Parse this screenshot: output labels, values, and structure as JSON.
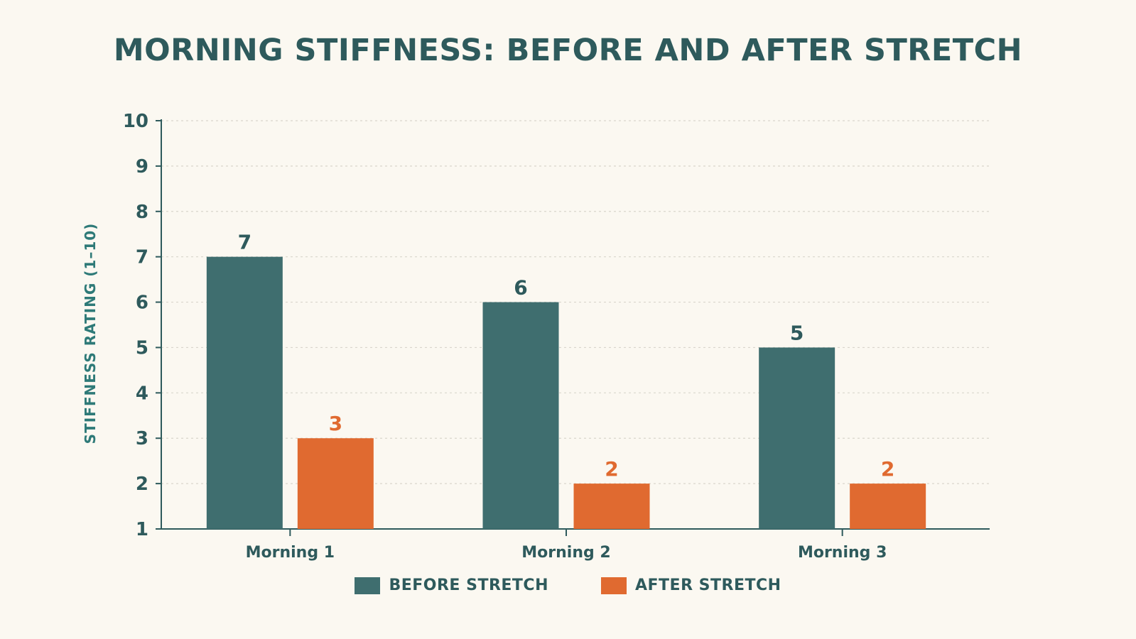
{
  "chart_data": {
    "type": "bar",
    "title": "MORNING STIFFNESS: BEFORE AND AFTER STRETCH",
    "xlabel": "",
    "ylabel": "STIFFNESS RATING (1–10)",
    "categories": [
      "Morning 1",
      "Morning 2",
      "Morning 3"
    ],
    "series": [
      {
        "name": "BEFORE STRETCH",
        "values": [
          7,
          6,
          5
        ],
        "color": "#3f6e6f",
        "label_color": "#2e5a5c"
      },
      {
        "name": "AFTER STRETCH",
        "values": [
          3,
          2,
          2
        ],
        "color": "#e06a30",
        "label_color": "#e06a30"
      }
    ],
    "ylim": [
      1,
      10
    ],
    "yticks": [
      1,
      2,
      3,
      4,
      5,
      6,
      7,
      8,
      9,
      10
    ],
    "grid": true,
    "legend_position": "bottom-center"
  }
}
